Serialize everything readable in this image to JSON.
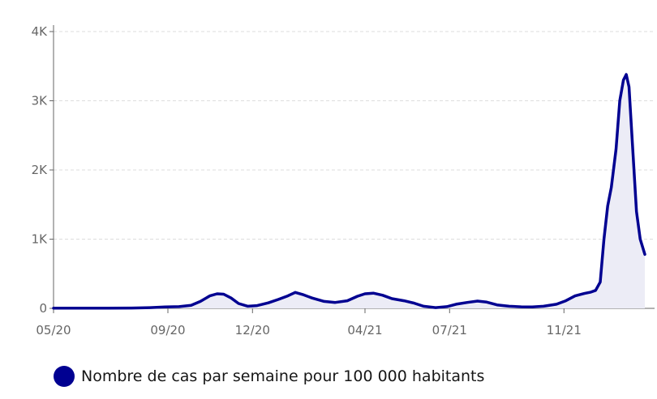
{
  "colors": {
    "line": "#000091",
    "area": "#ececf6",
    "grid": "#dddddd",
    "axis": "#666666",
    "text": "#161616"
  },
  "legend": {
    "label": "Nombre de cas par semaine pour 100 000 habitants"
  },
  "chart_data": {
    "type": "area",
    "title": "",
    "xlabel": "",
    "ylabel": "",
    "ylim": [
      0,
      4000
    ],
    "xlim": [
      "2020-05-13",
      "2022-02-08"
    ],
    "grid": true,
    "legend_position": "bottom-left",
    "y_ticks": [
      {
        "value": 0,
        "label": "0"
      },
      {
        "value": 1000,
        "label": "1K"
      },
      {
        "value": 2000,
        "label": "2K"
      },
      {
        "value": 3000,
        "label": "3K"
      },
      {
        "value": 4000,
        "label": "4K"
      }
    ],
    "x_ticks": [
      {
        "value": "2020-05-13",
        "label": "05/20"
      },
      {
        "value": "2020-09-13",
        "label": "09/20"
      },
      {
        "value": "2020-12-13",
        "label": "12/20"
      },
      {
        "value": "2021-04-13",
        "label": "04/21"
      },
      {
        "value": "2021-07-13",
        "label": "07/21"
      },
      {
        "value": "2021-11-13",
        "label": "11/21"
      }
    ],
    "series": [
      {
        "name": "Nombre de cas par semaine pour 100 000 habitants",
        "points": [
          [
            "2020-05-13",
            3
          ],
          [
            "2020-06-10",
            3
          ],
          [
            "2020-07-10",
            3
          ],
          [
            "2020-08-05",
            5
          ],
          [
            "2020-08-25",
            10
          ],
          [
            "2020-09-10",
            20
          ],
          [
            "2020-09-25",
            25
          ],
          [
            "2020-10-08",
            45
          ],
          [
            "2020-10-18",
            100
          ],
          [
            "2020-10-28",
            180
          ],
          [
            "2020-11-05",
            210
          ],
          [
            "2020-11-12",
            205
          ],
          [
            "2020-11-20",
            150
          ],
          [
            "2020-11-28",
            70
          ],
          [
            "2020-12-08",
            30
          ],
          [
            "2020-12-18",
            40
          ],
          [
            "2020-12-30",
            80
          ],
          [
            "2021-01-10",
            130
          ],
          [
            "2021-01-20",
            180
          ],
          [
            "2021-01-28",
            230
          ],
          [
            "2021-02-05",
            200
          ],
          [
            "2021-02-15",
            150
          ],
          [
            "2021-02-28",
            100
          ],
          [
            "2021-03-12",
            85
          ],
          [
            "2021-03-25",
            110
          ],
          [
            "2021-04-05",
            175
          ],
          [
            "2021-04-13",
            210
          ],
          [
            "2021-04-22",
            220
          ],
          [
            "2021-05-02",
            190
          ],
          [
            "2021-05-12",
            140
          ],
          [
            "2021-05-25",
            110
          ],
          [
            "2021-06-05",
            75
          ],
          [
            "2021-06-15",
            30
          ],
          [
            "2021-06-28",
            10
          ],
          [
            "2021-07-10",
            25
          ],
          [
            "2021-07-20",
            60
          ],
          [
            "2021-08-01",
            85
          ],
          [
            "2021-08-12",
            105
          ],
          [
            "2021-08-22",
            90
          ],
          [
            "2021-09-02",
            50
          ],
          [
            "2021-09-15",
            30
          ],
          [
            "2021-09-28",
            22
          ],
          [
            "2021-10-10",
            20
          ],
          [
            "2021-10-22",
            30
          ],
          [
            "2021-11-05",
            60
          ],
          [
            "2021-11-15",
            110
          ],
          [
            "2021-11-25",
            180
          ],
          [
            "2021-12-05",
            215
          ],
          [
            "2021-12-12",
            235
          ],
          [
            "2021-12-17",
            260
          ],
          [
            "2021-12-22",
            380
          ],
          [
            "2021-12-26",
            1000
          ],
          [
            "2021-12-30",
            1480
          ],
          [
            "2022-01-03",
            1750
          ],
          [
            "2022-01-08",
            2300
          ],
          [
            "2022-01-12",
            3000
          ],
          [
            "2022-01-16",
            3300
          ],
          [
            "2022-01-19",
            3380
          ],
          [
            "2022-01-22",
            3200
          ],
          [
            "2022-01-26",
            2300
          ],
          [
            "2022-01-30",
            1400
          ],
          [
            "2022-02-03",
            1000
          ],
          [
            "2022-02-08",
            780
          ]
        ]
      }
    ]
  }
}
